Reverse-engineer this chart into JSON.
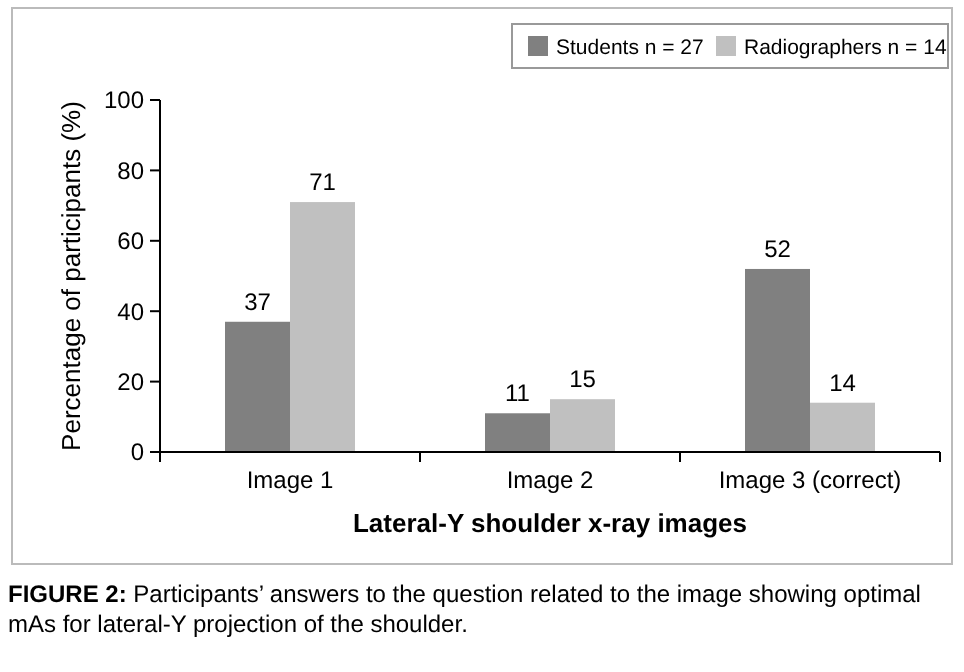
{
  "chart_data": {
    "type": "bar",
    "categories": [
      "Image 1",
      "Image 2",
      "Image 3 (correct)"
    ],
    "series": [
      {
        "name": "Students n = 27",
        "color": "#808080",
        "values": [
          37,
          11,
          52
        ]
      },
      {
        "name": "Radiographers n = 14",
        "color": "#c0c0c0",
        "values": [
          71,
          15,
          14
        ]
      }
    ],
    "ylim": [
      0,
      100
    ],
    "yticks": [
      0,
      20,
      40,
      60,
      80,
      100
    ],
    "ylabel": "Percentage of participants (%)",
    "xlabel": "Lateral-Y shoulder x-ray images",
    "data_labels": true,
    "grid": false,
    "legend": "top right",
    "annotations": [
      "FIGURE 2: Participants’ answers to the question related to the image showing optimal mAs for lateral-Y projection of the shoulder."
    ]
  }
}
